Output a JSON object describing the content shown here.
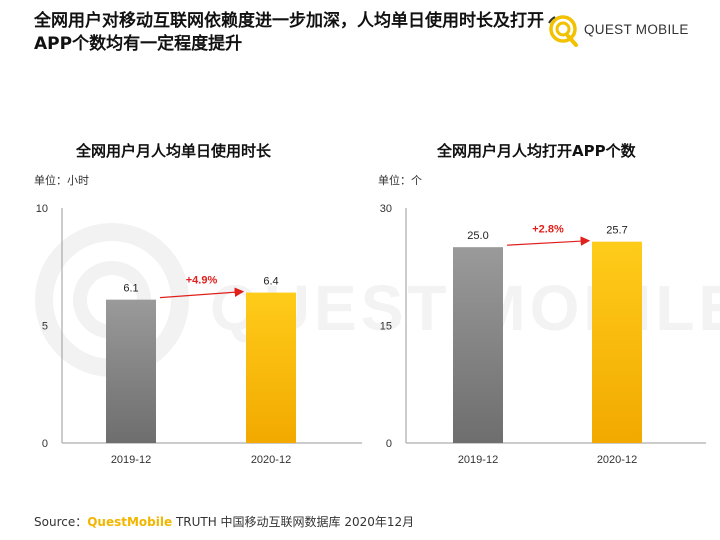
{
  "header": {
    "title": "全网用户对移动互联网依赖度进一步加深，人均单日使用时长及打开APP个数均有一定程度提升"
  },
  "logo": {
    "text": "QUEST MOBILE",
    "watermark": "QUEST MOBILE"
  },
  "colors": {
    "bar_2019": "#8a8a8a",
    "bar_2020": "#f7b500",
    "growth": "#e0201c",
    "brand": "#f2b600"
  },
  "source": {
    "prefix": "Source：",
    "brand": "QuestMobile",
    "rest": " TRUTH 中国移动互联网数据库 2020年12月"
  },
  "chart_data": [
    {
      "type": "bar",
      "title": "全网用户月人均单日使用时长",
      "unit": "单位：小时",
      "categories": [
        "2019-12",
        "2020-12"
      ],
      "values": [
        6.1,
        6.4
      ],
      "value_labels": [
        "6.1",
        "6.4"
      ],
      "growth": "+4.9%",
      "ylim": [
        0,
        10
      ],
      "yticks": [
        "0",
        "5",
        "10"
      ],
      "grid": false
    },
    {
      "type": "bar",
      "title": "全网用户月人均打开APP个数",
      "unit": "单位：个",
      "categories": [
        "2019-12",
        "2020-12"
      ],
      "values": [
        25.0,
        25.7
      ],
      "value_labels": [
        "25.0",
        "25.7"
      ],
      "growth": "+2.8%",
      "ylim": [
        0,
        30
      ],
      "yticks": [
        "0",
        "15",
        "30"
      ],
      "grid": false
    }
  ]
}
